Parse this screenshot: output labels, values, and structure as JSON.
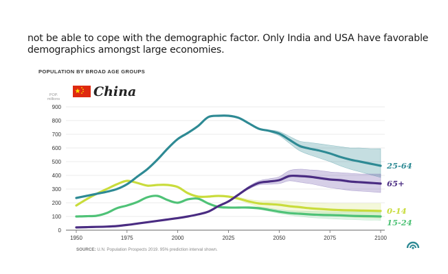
{
  "intro_text": "not be able to cope with the demographic factor. Only India and USA have favorable demographics amongst large economies.",
  "chart_data": {
    "type": "line",
    "title": "POPULATION BY BROAD AGE GROUPS",
    "country": "China",
    "ylabel": "POP. millions",
    "ylabel_line1": "POP.",
    "ylabel_line2": "millions",
    "xlabel": "",
    "xlim": [
      1950,
      2100
    ],
    "ylim": [
      0,
      900
    ],
    "x_ticks": [
      1950,
      1975,
      2000,
      2025,
      2050,
      2075,
      2100
    ],
    "y_ticks": [
      0,
      100,
      200,
      300,
      400,
      500,
      600,
      700,
      800,
      900
    ],
    "grid": "horizontal",
    "legend": "inline-right",
    "prediction_start": 2020,
    "series": [
      {
        "name": "25-64",
        "color": "#2e8a94",
        "band_color": "#2e8a94",
        "x": [
          1950,
          1955,
          1960,
          1965,
          1970,
          1975,
          1980,
          1985,
          1990,
          1995,
          2000,
          2005,
          2010,
          2015,
          2020,
          2025,
          2030,
          2035,
          2040,
          2045,
          2050,
          2055,
          2060,
          2065,
          2070,
          2075,
          2080,
          2085,
          2090,
          2095,
          2100
        ],
        "values": [
          235,
          250,
          265,
          280,
          300,
          335,
          390,
          445,
          515,
          595,
          665,
          710,
          760,
          825,
          835,
          835,
          820,
          780,
          740,
          725,
          705,
          660,
          615,
          595,
          580,
          560,
          535,
          515,
          500,
          485,
          470
        ],
        "band_low": [
          null,
          null,
          null,
          null,
          null,
          null,
          null,
          null,
          null,
          null,
          null,
          null,
          null,
          null,
          835,
          833,
          818,
          778,
          736,
          718,
          690,
          635,
          580,
          550,
          525,
          500,
          470,
          445,
          425,
          405,
          385
        ],
        "band_high": [
          null,
          null,
          null,
          null,
          null,
          null,
          null,
          null,
          null,
          null,
          null,
          null,
          null,
          null,
          835,
          837,
          822,
          782,
          744,
          732,
          720,
          685,
          650,
          640,
          630,
          620,
          610,
          600,
          600,
          595,
          595
        ]
      },
      {
        "name": "65+",
        "color": "#4a2c82",
        "band_color": "#6a54a8",
        "x": [
          1950,
          1955,
          1960,
          1965,
          1970,
          1975,
          1980,
          1985,
          1990,
          1995,
          2000,
          2005,
          2010,
          2015,
          2020,
          2025,
          2030,
          2035,
          2040,
          2045,
          2050,
          2055,
          2060,
          2065,
          2070,
          2075,
          2080,
          2085,
          2090,
          2095,
          2100
        ],
        "values": [
          20,
          22,
          24,
          26,
          30,
          38,
          48,
          58,
          68,
          78,
          88,
          100,
          115,
          135,
          175,
          210,
          260,
          310,
          345,
          355,
          365,
          395,
          395,
          390,
          380,
          370,
          365,
          355,
          350,
          345,
          340
        ],
        "band_low": [
          null,
          null,
          null,
          null,
          null,
          null,
          null,
          null,
          null,
          null,
          null,
          null,
          null,
          null,
          175,
          208,
          255,
          300,
          330,
          335,
          340,
          360,
          350,
          340,
          325,
          310,
          300,
          290,
          285,
          280,
          275
        ],
        "band_high": [
          null,
          null,
          null,
          null,
          null,
          null,
          null,
          null,
          null,
          null,
          null,
          null,
          null,
          null,
          175,
          212,
          265,
          320,
          360,
          375,
          390,
          435,
          445,
          440,
          435,
          425,
          420,
          415,
          410,
          410,
          410
        ]
      },
      {
        "name": "0-14",
        "color": "#c9dc3c",
        "band_color": "#d8e57a",
        "x": [
          1950,
          1955,
          1960,
          1965,
          1970,
          1975,
          1980,
          1985,
          1990,
          1995,
          2000,
          2005,
          2010,
          2015,
          2020,
          2025,
          2030,
          2035,
          2040,
          2045,
          2050,
          2055,
          2060,
          2065,
          2070,
          2075,
          2080,
          2085,
          2090,
          2095,
          2100
        ],
        "values": [
          180,
          225,
          265,
          300,
          335,
          360,
          345,
          325,
          330,
          330,
          315,
          270,
          245,
          245,
          250,
          245,
          230,
          210,
          195,
          190,
          185,
          175,
          168,
          160,
          155,
          150,
          147,
          145,
          143,
          142,
          140
        ],
        "band_low": [
          null,
          null,
          null,
          null,
          null,
          null,
          null,
          null,
          null,
          null,
          null,
          null,
          null,
          null,
          250,
          240,
          220,
          195,
          170,
          160,
          150,
          140,
          130,
          120,
          113,
          105,
          100,
          96,
          92,
          90,
          88
        ],
        "band_high": [
          null,
          null,
          null,
          null,
          null,
          null,
          null,
          null,
          null,
          null,
          null,
          null,
          null,
          null,
          250,
          250,
          240,
          225,
          215,
          215,
          215,
          210,
          205,
          200,
          197,
          195,
          195,
          195,
          195,
          195,
          195
        ]
      },
      {
        "name": "15-24",
        "color": "#4fc277",
        "band_color": "#8ed8a6",
        "x": [
          1950,
          1955,
          1960,
          1965,
          1970,
          1975,
          1980,
          1985,
          1990,
          1995,
          2000,
          2005,
          2010,
          2015,
          2020,
          2025,
          2030,
          2035,
          2040,
          2045,
          2050,
          2055,
          2060,
          2065,
          2070,
          2075,
          2080,
          2085,
          2090,
          2095,
          2100
        ],
        "values": [
          100,
          102,
          105,
          125,
          160,
          180,
          205,
          240,
          250,
          220,
          200,
          225,
          230,
          195,
          170,
          165,
          165,
          165,
          160,
          148,
          135,
          125,
          120,
          115,
          112,
          110,
          108,
          105,
          103,
          102,
          100
        ],
        "band_low": [
          null,
          null,
          null,
          null,
          null,
          null,
          null,
          null,
          null,
          null,
          null,
          null,
          null,
          null,
          170,
          163,
          160,
          158,
          152,
          138,
          122,
          110,
          100,
          93,
          88,
          84,
          80,
          78,
          75,
          73,
          72
        ],
        "band_high": [
          null,
          null,
          null,
          null,
          null,
          null,
          null,
          null,
          null,
          null,
          null,
          null,
          null,
          null,
          170,
          167,
          170,
          172,
          168,
          160,
          150,
          142,
          140,
          138,
          136,
          135,
          135,
          134,
          133,
          132,
          130
        ]
      }
    ],
    "source": "U.N. Population Prospects 2019. 95% prediction interval shown.",
    "source_label": "SOURCE:"
  }
}
